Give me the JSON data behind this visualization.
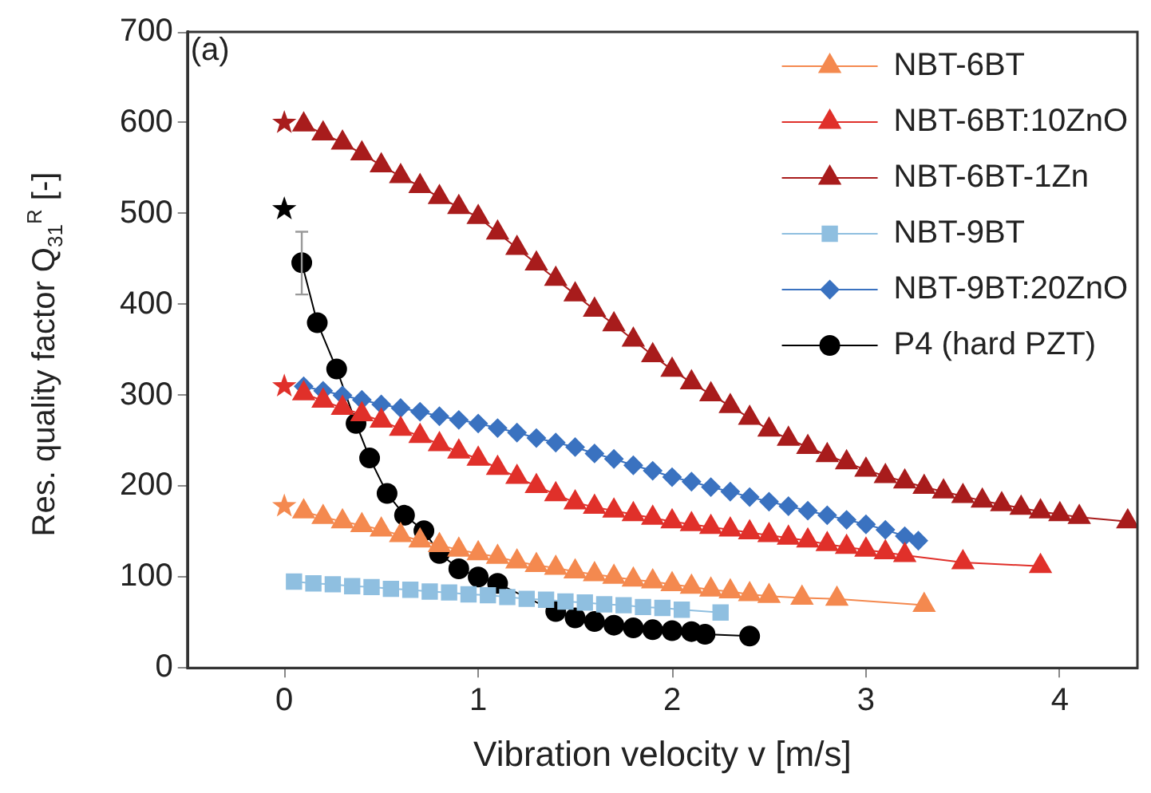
{
  "chart_data": {
    "type": "line",
    "xlabel": "Vibration velocity v [m/s]",
    "ylabel": "Res. quality factor Q$_{31}$$^{R}$ [-]",
    "annotations": [
      "(a)"
    ],
    "xlim": [
      -0.5,
      4.4
    ],
    "xticks": [
      0,
      1,
      2,
      3,
      4
    ],
    "ylim": [
      0,
      700
    ],
    "yticks": [
      0,
      100,
      200,
      300,
      400,
      500,
      600,
      700
    ],
    "grid": false,
    "legend": "top right",
    "line_style": "solid",
    "series": [
      {
        "name": "NBT-6BT",
        "color": "#f4894f",
        "marker": "triangle",
        "x": [
          0.1,
          0.2,
          0.3,
          0.4,
          0.5,
          0.6,
          0.7,
          0.8,
          0.9,
          1.0,
          1.1,
          1.2,
          1.3,
          1.4,
          1.5,
          1.6,
          1.7,
          1.8,
          1.9,
          2.0,
          2.1,
          2.2,
          2.3,
          2.4,
          2.5,
          2.67,
          2.85,
          3.3
        ],
        "values": [
          172,
          166,
          161,
          157,
          152,
          146,
          140,
          135,
          130,
          126,
          122,
          117,
          113,
          110,
          106,
          103,
          100,
          97,
          95,
          92,
          89,
          86,
          84,
          81,
          79,
          77,
          76,
          69
        ]
      },
      {
        "name": "NBT-6BT:10ZnO",
        "color": "#e0302a",
        "marker": "triangle",
        "x": [
          0.1,
          0.2,
          0.3,
          0.4,
          0.5,
          0.6,
          0.7,
          0.8,
          0.9,
          1.0,
          1.1,
          1.2,
          1.3,
          1.4,
          1.5,
          1.6,
          1.7,
          1.8,
          1.9,
          2.0,
          2.1,
          2.2,
          2.3,
          2.4,
          2.5,
          2.6,
          2.7,
          2.8,
          2.9,
          3.0,
          3.1,
          3.2,
          3.5,
          3.9
        ],
        "values": [
          302,
          294,
          286,
          279,
          272,
          263,
          255,
          246,
          238,
          230,
          220,
          210,
          200,
          191,
          182,
          177,
          173,
          169,
          165,
          161,
          158,
          155,
          152,
          149,
          146,
          143,
          140,
          136,
          133,
          130,
          127,
          124,
          116,
          112
        ]
      },
      {
        "name": "NBT-6BT-1Zn",
        "color": "#a81c1c",
        "marker": "triangle",
        "x": [
          0.1,
          0.2,
          0.3,
          0.4,
          0.5,
          0.6,
          0.7,
          0.8,
          0.9,
          1.0,
          1.1,
          1.2,
          1.3,
          1.4,
          1.5,
          1.6,
          1.7,
          1.8,
          1.9,
          2.0,
          2.1,
          2.2,
          2.3,
          2.4,
          2.5,
          2.6,
          2.7,
          2.8,
          2.9,
          3.0,
          3.1,
          3.2,
          3.3,
          3.4,
          3.5,
          3.6,
          3.7,
          3.8,
          3.9,
          4.0,
          4.1,
          4.35
        ],
        "values": [
          598,
          588,
          578,
          566,
          553,
          541,
          530,
          518,
          507,
          496,
          479,
          462,
          445,
          428,
          411,
          394,
          378,
          361,
          344,
          328,
          314,
          301,
          288,
          275,
          262,
          252,
          243,
          234,
          226,
          218,
          211,
          205,
          199,
          194,
          189,
          184,
          180,
          176,
          172,
          169,
          166,
          161
        ]
      },
      {
        "name": "NBT-9BT",
        "color": "#8fbfe0",
        "marker": "square",
        "x": [
          0.05,
          0.15,
          0.25,
          0.35,
          0.45,
          0.55,
          0.65,
          0.75,
          0.85,
          0.95,
          1.05,
          1.15,
          1.25,
          1.35,
          1.45,
          1.55,
          1.65,
          1.75,
          1.85,
          1.95,
          2.05,
          2.25
        ],
        "values": [
          95,
          93,
          92,
          90,
          89,
          87,
          86,
          84,
          83,
          81,
          80,
          78,
          76,
          75,
          73,
          72,
          70,
          69,
          67,
          66,
          64,
          61
        ]
      },
      {
        "name": "NBT-9BT:20ZnO",
        "color": "#3a72c0",
        "marker": "diamond",
        "x": [
          0.1,
          0.2,
          0.3,
          0.4,
          0.5,
          0.6,
          0.7,
          0.8,
          0.9,
          1.0,
          1.1,
          1.2,
          1.3,
          1.4,
          1.5,
          1.6,
          1.7,
          1.8,
          1.9,
          2.0,
          2.1,
          2.2,
          2.3,
          2.4,
          2.5,
          2.6,
          2.7,
          2.8,
          2.9,
          3.0,
          3.1,
          3.2,
          3.27
        ],
        "values": [
          310,
          305,
          300,
          295,
          290,
          286,
          282,
          277,
          273,
          269,
          264,
          259,
          253,
          248,
          243,
          236,
          230,
          223,
          217,
          210,
          205,
          199,
          194,
          188,
          183,
          178,
          173,
          168,
          163,
          158,
          152,
          145,
          140
        ]
      },
      {
        "name": "P4 (hard PZT)",
        "color": "#000000",
        "marker": "circle",
        "x": [
          0.09,
          0.17,
          0.27,
          0.37,
          0.44,
          0.53,
          0.62,
          0.72,
          0.8,
          0.9,
          1.0,
          1.1,
          1.2,
          1.3,
          1.4,
          1.5,
          1.6,
          1.7,
          1.8,
          1.9,
          2.0,
          2.1,
          2.17,
          2.4
        ],
        "values": [
          446,
          380,
          329,
          269,
          231,
          192,
          168,
          151,
          126,
          109,
          100,
          93,
          null,
          null,
          62,
          55,
          51,
          47,
          44,
          42,
          41,
          40,
          37,
          35
        ],
        "errors": [
          [
            411,
            480
          ],
          null,
          null,
          null,
          null,
          null,
          null,
          null,
          null,
          null,
          null,
          null,
          null,
          null,
          null,
          null,
          null,
          null,
          null,
          null,
          null,
          null,
          null,
          null
        ]
      },
      {
        "type": "scatter",
        "marker": "star",
        "x": [
          0,
          0,
          0,
          0
        ],
        "values": [
          600,
          310,
          178,
          505
        ],
        "colors": [
          "#a81c1c",
          "#e0302a",
          "#f4894f",
          "#000000"
        ]
      }
    ]
  }
}
